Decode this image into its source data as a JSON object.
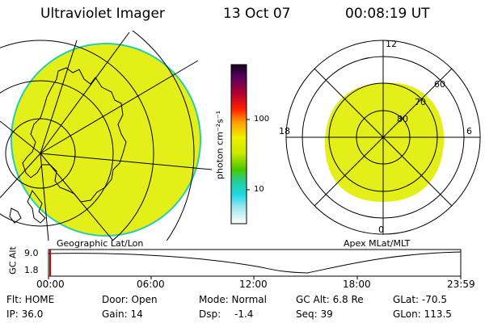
{
  "header": {
    "title": "Ultraviolet Imager",
    "date": "13 Oct 07",
    "time": "00:08:19 UT"
  },
  "colorbar": {
    "label": "photon cm⁻²s⁻¹",
    "ticks": [
      "100",
      "10"
    ]
  },
  "left_panel": {
    "label": "Geographic Lat/Lon"
  },
  "right_panel": {
    "label": "Apex MLat/MLT",
    "mlt_labels": {
      "top": "12",
      "bottom": "0",
      "left": "18",
      "right": "6"
    },
    "lat_labels": [
      "60",
      "70",
      "80"
    ]
  },
  "timeline": {
    "ylabel": "GC Alt",
    "yticks": [
      "9.0",
      "1.8"
    ],
    "xticks": [
      "00:00",
      "06:00",
      "12:00",
      "18:00",
      "23:59"
    ]
  },
  "info": {
    "row1": {
      "flt": "Flt: HOME",
      "door": "Door: Open",
      "mode": "Mode: Normal",
      "gcalt": "GC Alt: 6.8 Re",
      "glat": "GLat: -70.5"
    },
    "row2": {
      "ip": "IP: 36.0",
      "gain": "Gain: 14",
      "dsp_label": "Dsp:",
      "dsp_value": "-1.4",
      "seq": "Seq: 39",
      "glon": "GLon: 113.5"
    }
  },
  "colors": {
    "emission": "#e4ef1a",
    "edge": "#26cdb0"
  }
}
